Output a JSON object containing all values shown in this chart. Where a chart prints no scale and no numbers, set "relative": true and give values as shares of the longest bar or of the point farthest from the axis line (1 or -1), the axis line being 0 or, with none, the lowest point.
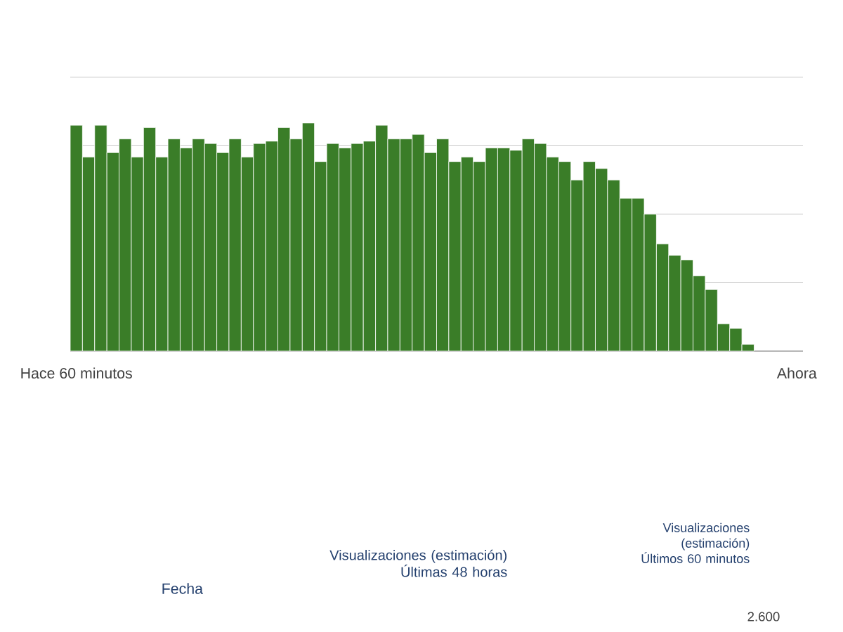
{
  "chart_data": {
    "type": "bar",
    "relative": true,
    "grid": "y",
    "color": "#3a7d28",
    "categories": [
      "Hace 60 minutos",
      null,
      null,
      null,
      null,
      null,
      null,
      null,
      null,
      null,
      null,
      null,
      null,
      null,
      null,
      null,
      null,
      null,
      null,
      null,
      null,
      null,
      null,
      null,
      null,
      null,
      null,
      null,
      null,
      null,
      null,
      null,
      null,
      null,
      null,
      null,
      null,
      null,
      null,
      null,
      null,
      null,
      null,
      null,
      null,
      null,
      null,
      null,
      null,
      null,
      null,
      null,
      null,
      null,
      null,
      null,
      null,
      null,
      null,
      "Ahora"
    ],
    "values": [
      0.99,
      0.85,
      0.99,
      0.87,
      0.93,
      0.85,
      0.98,
      0.85,
      0.93,
      0.89,
      0.93,
      0.91,
      0.87,
      0.93,
      0.85,
      0.91,
      0.92,
      0.98,
      0.93,
      1,
      0.83,
      0.91,
      0.89,
      0.91,
      0.92,
      0.99,
      0.93,
      0.93,
      0.95,
      0.87,
      0.93,
      0.83,
      0.85,
      0.83,
      0.89,
      0.89,
      0.88,
      0.93,
      0.91,
      0.85,
      0.83,
      0.75,
      0.83,
      0.8,
      0.75,
      0.67,
      0.67,
      0.6,
      0.47,
      0.42,
      0.4,
      0.33,
      0.27,
      0.12,
      0.1,
      0.03,
      null,
      null,
      null,
      null
    ],
    "annotations": [
      "Fecha",
      "Visualizaciones (estimación) Últimas 48 horas",
      "Visualizaciones (estimación) Últimos 60 minutos",
      "2.600"
    ]
  }
}
